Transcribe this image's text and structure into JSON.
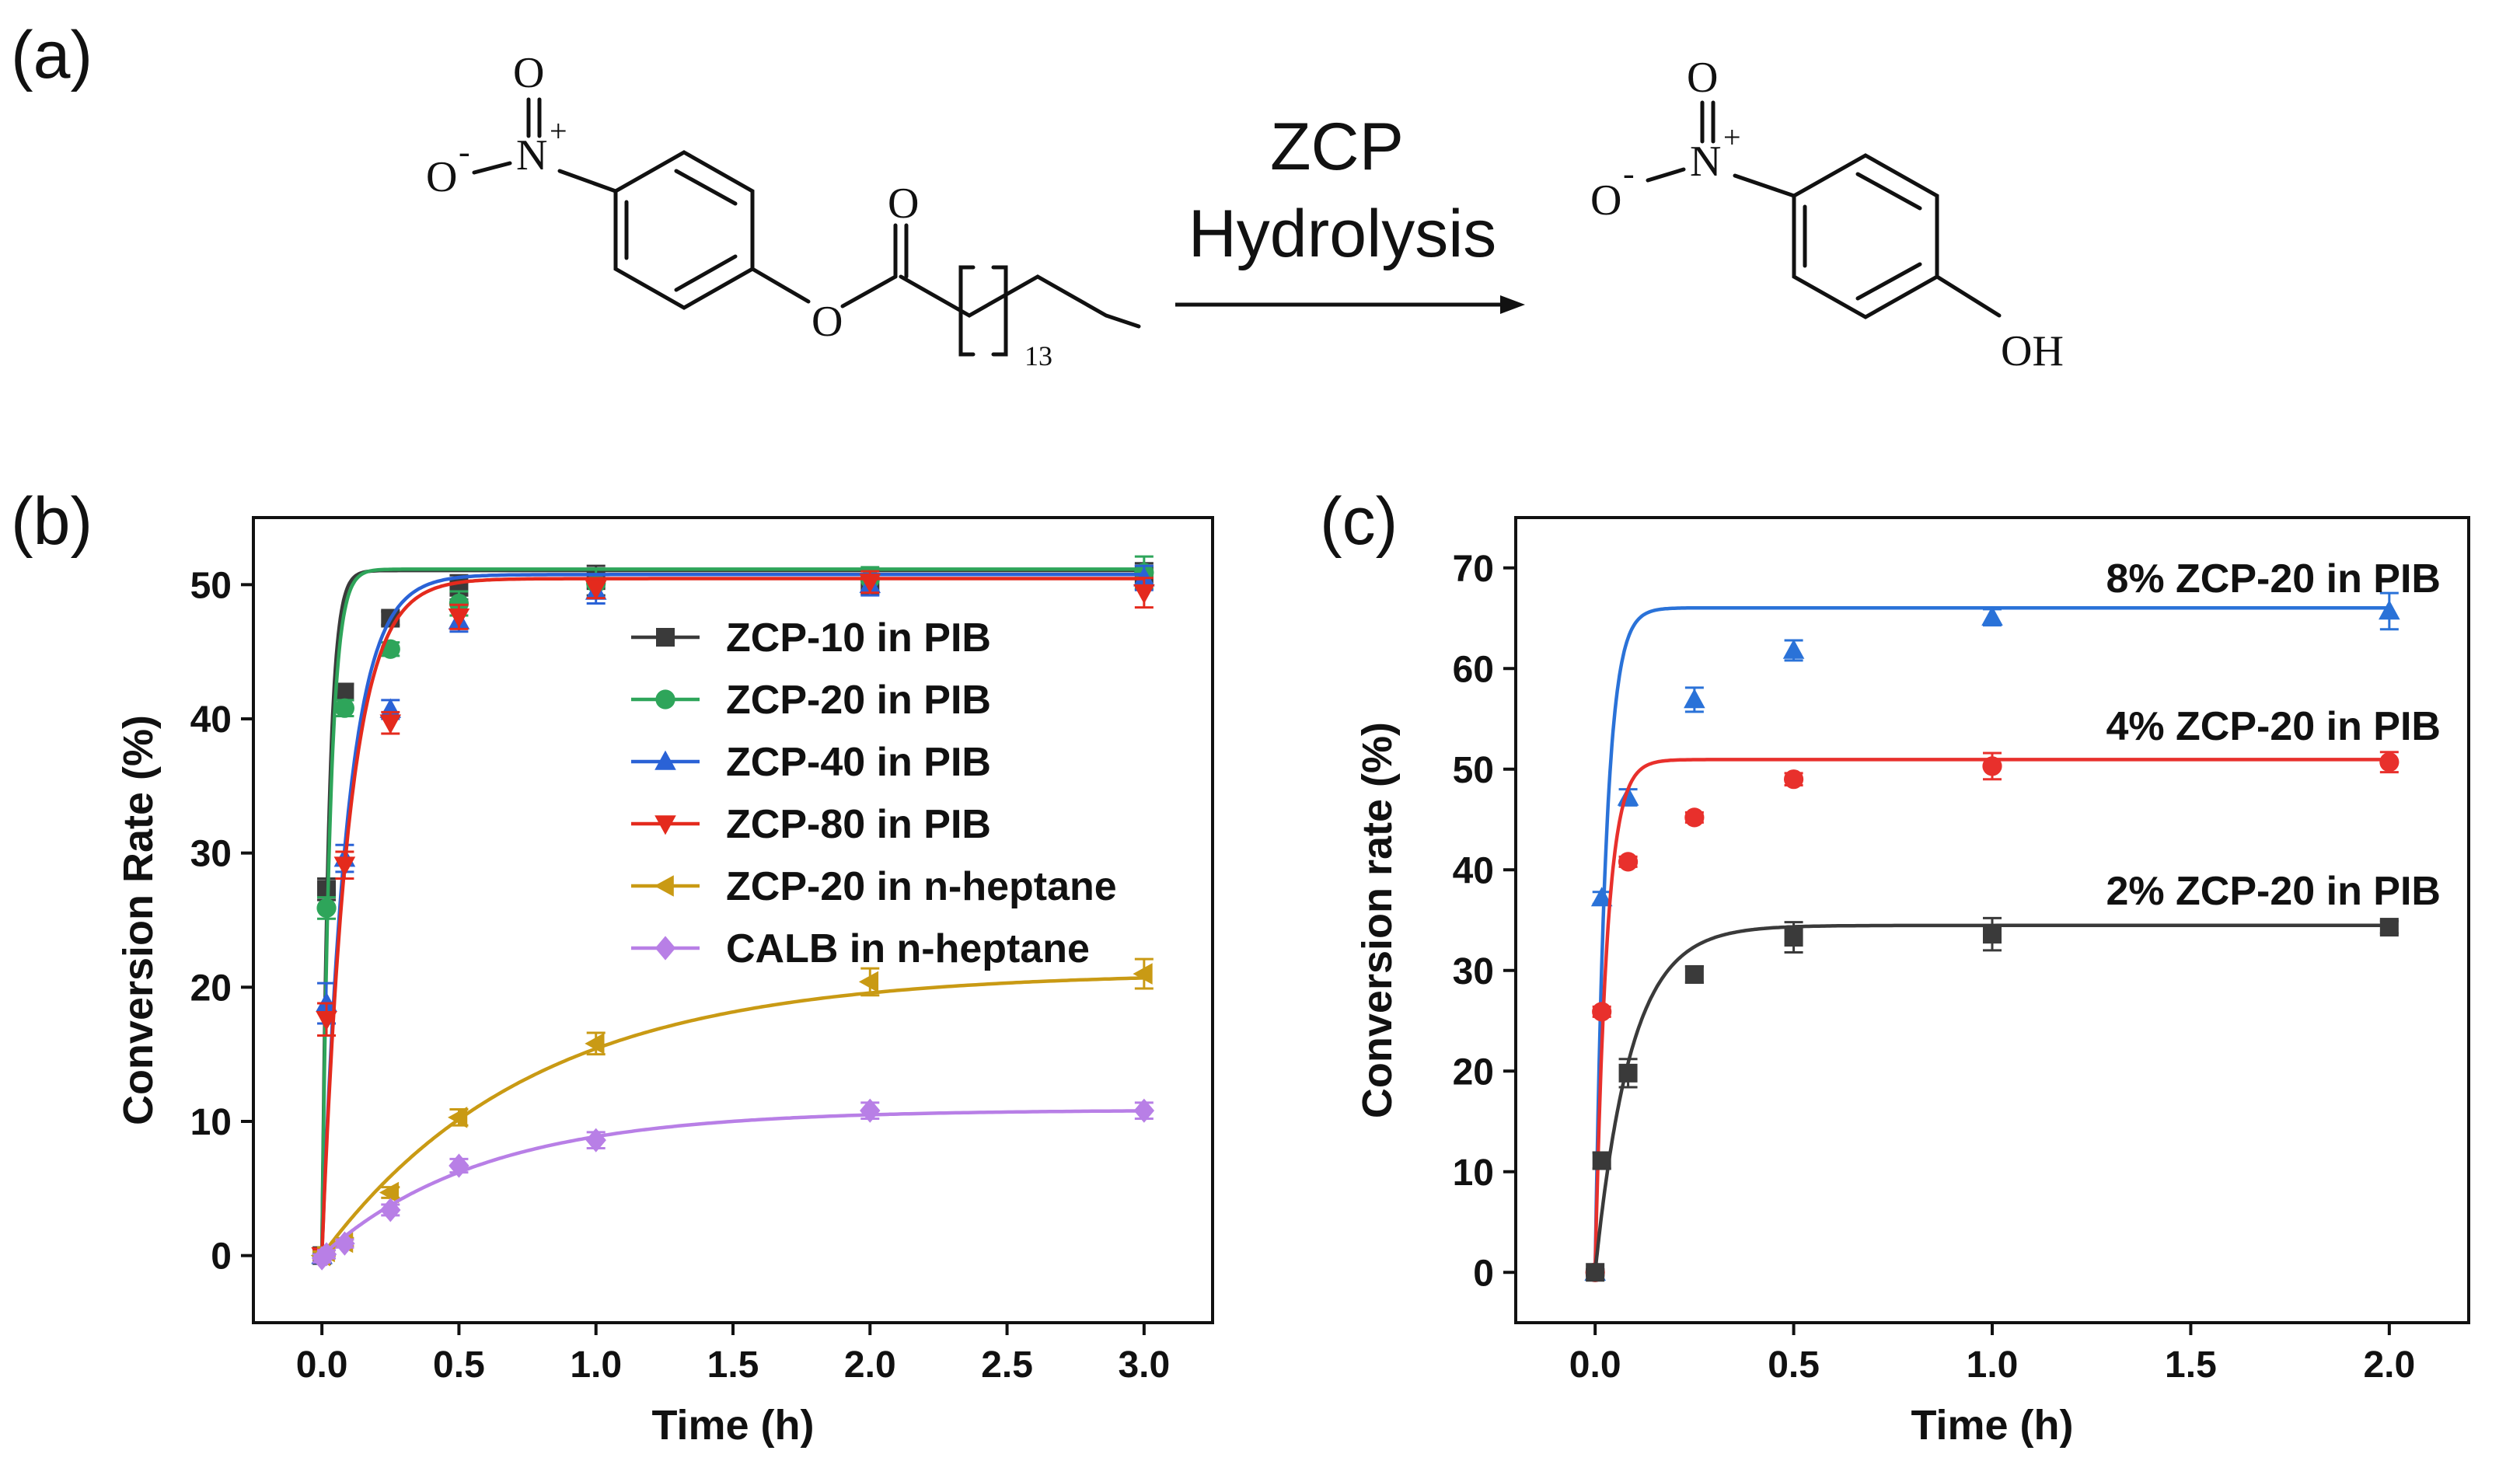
{
  "panel_a": {
    "label": "(a)",
    "arrow_top": "ZCP",
    "arrow_bottom": "Hydrolysis",
    "reactant": {
      "n": "N",
      "o_top": "O",
      "o_left": "O",
      "minus": "-",
      "plus": "+",
      "carbonyl_o": "O",
      "ester_o": "O",
      "subscript": "13"
    },
    "product": {
      "n": "N",
      "o_top": "O",
      "o_left": "O",
      "minus": "-",
      "plus": "+",
      "oh": "OH"
    }
  },
  "chart_data": [
    {
      "panel": "(b)",
      "type": "scatter",
      "title": "",
      "xlabel": "Time (h)",
      "ylabel": "Conversion Rate (%)",
      "xlim": [
        -0.25,
        3.25
      ],
      "ylim": [
        -5,
        55
      ],
      "xticks": [
        "0.0",
        "0.5",
        "1.0",
        "1.5",
        "2.0",
        "2.5",
        "3.0"
      ],
      "yticks": [
        "0",
        "10",
        "20",
        "30",
        "40",
        "50"
      ],
      "legend_position": "center-right",
      "series": [
        {
          "name": "ZCP-10 in PIB",
          "color": "#3a3a3a",
          "marker": "square",
          "x": [
            0,
            0.0167,
            0.083,
            0.25,
            0.5,
            1,
            2,
            3
          ],
          "y": [
            0,
            27.3,
            42.0,
            47.5,
            49.8,
            50.3,
            50.2,
            50.8
          ],
          "err": [
            0.3,
            0.8,
            0.6,
            0.5,
            0.9,
            1.1,
            0.9,
            0.8
          ]
        },
        {
          "name": "ZCP-20 in PIB",
          "color": "#2ea55a",
          "marker": "circle",
          "x": [
            0,
            0.0167,
            0.083,
            0.25,
            0.5,
            1,
            2,
            3
          ],
          "y": [
            0,
            25.9,
            40.8,
            45.2,
            48.6,
            50.1,
            50.4,
            50.9
          ],
          "err": [
            0.3,
            0.8,
            0.6,
            0.5,
            0.9,
            1.1,
            0.9,
            1.2
          ]
        },
        {
          "name": "ZCP-40 in PIB",
          "color": "#2a62d6",
          "marker": "triangle-up",
          "x": [
            0,
            0.0167,
            0.083,
            0.25,
            0.5,
            1,
            2,
            3
          ],
          "y": [
            0,
            18.8,
            29.6,
            40.7,
            47.3,
            49.5,
            50.0,
            50.5
          ],
          "err": [
            0.3,
            1.5,
            1.0,
            0.7,
            0.8,
            0.9,
            0.8,
            0.9
          ]
        },
        {
          "name": "ZCP-80 in PIB",
          "color": "#e42a1d",
          "marker": "triangle-down",
          "x": [
            0,
            0.0167,
            0.083,
            0.25,
            0.5,
            1,
            2,
            3
          ],
          "y": [
            0,
            17.6,
            29.1,
            39.7,
            47.6,
            49.7,
            50.2,
            49.4
          ],
          "err": [
            0.3,
            1.2,
            1.0,
            0.8,
            0.9,
            0.7,
            0.8,
            1.1
          ]
        },
        {
          "name": "ZCP-20 in n-heptane",
          "color": "#c99a14",
          "marker": "triangle-left",
          "x": [
            0,
            0.0167,
            0.083,
            0.25,
            0.5,
            1,
            2,
            3
          ],
          "y": [
            0,
            0.3,
            1.0,
            4.7,
            10.3,
            15.8,
            20.4,
            21.0
          ],
          "err": [
            0.3,
            0.3,
            0.3,
            0.4,
            0.6,
            0.8,
            1.0,
            1.1
          ]
        },
        {
          "name": "CALB in n-heptane",
          "color": "#b87fe6",
          "marker": "diamond",
          "x": [
            0,
            0.0167,
            0.083,
            0.25,
            0.5,
            1,
            2,
            3
          ],
          "y": [
            -0.2,
            0.1,
            0.9,
            3.4,
            6.7,
            8.6,
            10.8,
            10.8
          ],
          "err": [
            0.3,
            0.3,
            0.3,
            0.4,
            0.5,
            0.6,
            0.6,
            0.6
          ]
        }
      ]
    },
    {
      "panel": "(c)",
      "type": "scatter",
      "title": "",
      "xlabel": "Time (h)",
      "ylabel": "Conversion rate (%)",
      "xlim": [
        -0.2,
        2.2
      ],
      "ylim": [
        -5,
        75
      ],
      "xticks": [
        "0.0",
        "0.5",
        "1.0",
        "1.5",
        "2.0"
      ],
      "yticks": [
        "0",
        "10",
        "20",
        "30",
        "40",
        "50",
        "60",
        "70"
      ],
      "series": [
        {
          "name": "8% ZCP-20 in PIB",
          "color": "#2a72d8",
          "marker": "triangle-up",
          "x": [
            0,
            0.0167,
            0.083,
            0.25,
            0.5,
            1,
            2
          ],
          "y": [
            0,
            37.2,
            47.2,
            56.9,
            61.8,
            65.1,
            65.7
          ],
          "err": [
            0.3,
            0.6,
            0.8,
            1.2,
            1.0,
            0.8,
            1.8
          ]
        },
        {
          "name": "4% ZCP-20 in PIB",
          "color": "#e8302c",
          "marker": "circle",
          "x": [
            0,
            0.0167,
            0.083,
            0.25,
            0.5,
            1,
            2
          ],
          "y": [
            0,
            25.9,
            40.8,
            45.2,
            49.0,
            50.3,
            50.7
          ],
          "err": [
            0.3,
            0.5,
            0.5,
            0.5,
            0.6,
            1.3,
            1.0
          ]
        },
        {
          "name": "2% ZCP-20 in PIB",
          "color": "#3a3a3a",
          "marker": "square",
          "x": [
            0,
            0.0167,
            0.083,
            0.25,
            0.5,
            1,
            2
          ],
          "y": [
            0,
            11.1,
            19.8,
            29.6,
            33.3,
            33.6,
            34.3
          ],
          "err": [
            0.3,
            0.8,
            1.4,
            0.8,
            1.5,
            1.6,
            0.6
          ]
        }
      ]
    }
  ]
}
